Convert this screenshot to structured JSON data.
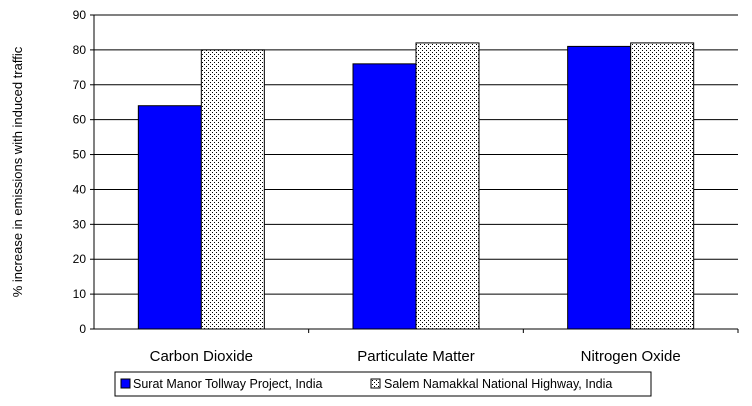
{
  "chart_data": {
    "type": "bar",
    "categories": [
      "Carbon Dioxide",
      "Particulate Matter",
      "Nitrogen Oxide"
    ],
    "series": [
      {
        "name": "Surat Manor Tollway Project, India",
        "values": [
          64,
          76,
          81
        ],
        "color": "#0000ff",
        "pattern": "solid"
      },
      {
        "name": "Salem Namakkal National Highway, India",
        "values": [
          80,
          82,
          82
        ],
        "color": "#ffffff",
        "pattern": "dotted"
      }
    ],
    "ylabel": "% increase in emissions with induced traffic",
    "xlabel": "",
    "ylim": [
      0,
      90
    ],
    "yticks": [
      0,
      10,
      20,
      30,
      40,
      50,
      60,
      70,
      80,
      90
    ],
    "grid": true,
    "legend": "bottom"
  }
}
